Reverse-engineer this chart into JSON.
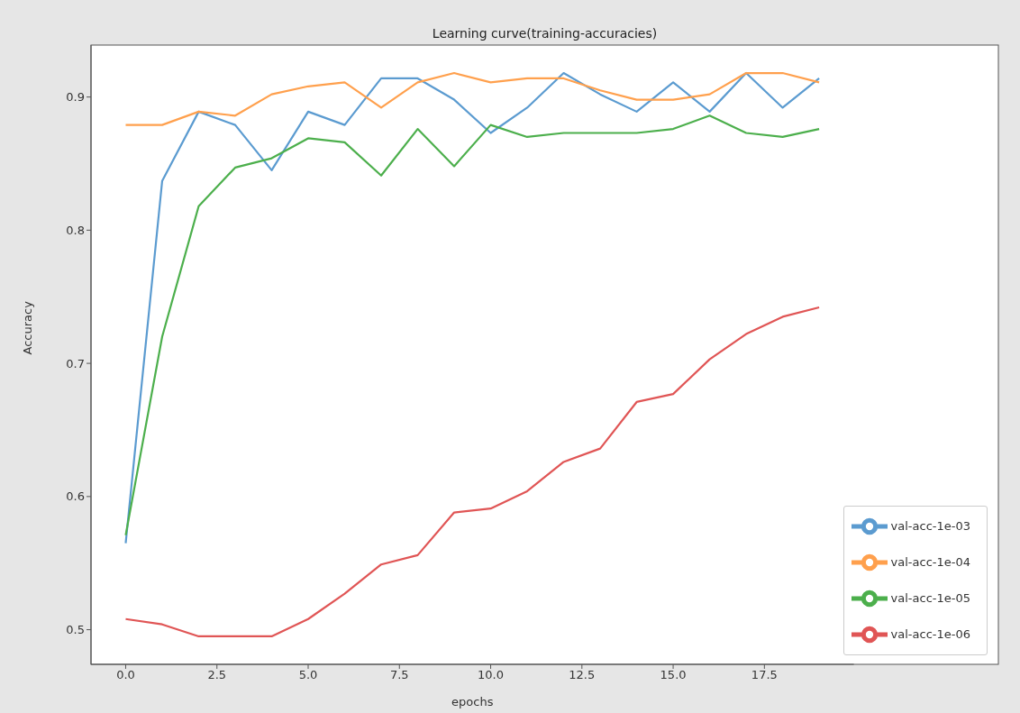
{
  "chart_data": {
    "type": "line",
    "title": "Learning curve(training-accuracies)",
    "xlabel": "epochs",
    "ylabel": "Accuracy",
    "x": [
      0,
      1,
      2,
      3,
      4,
      5,
      6,
      7,
      8,
      9,
      10,
      11,
      12,
      13,
      14,
      15,
      16,
      17,
      18,
      19
    ],
    "series": [
      {
        "name": "val-acc-1e-03",
        "color": "#5b9bd0",
        "values": [
          0.565,
          0.837,
          0.889,
          0.879,
          0.845,
          0.889,
          0.879,
          0.914,
          0.914,
          0.898,
          0.873,
          0.892,
          0.918,
          0.902,
          0.889,
          0.911,
          0.889,
          0.918,
          0.892,
          0.914
        ]
      },
      {
        "name": "val-acc-1e-04",
        "color": "#ffa04d",
        "values": [
          0.879,
          0.879,
          0.889,
          0.886,
          0.902,
          0.908,
          0.911,
          0.892,
          0.911,
          0.918,
          0.911,
          0.914,
          0.914,
          0.905,
          0.898,
          0.898,
          0.902,
          0.918,
          0.918,
          0.911
        ]
      },
      {
        "name": "val-acc-1e-05",
        "color": "#4caf4c",
        "values": [
          0.571,
          0.72,
          0.818,
          0.847,
          0.854,
          0.869,
          0.866,
          0.841,
          0.876,
          0.848,
          0.879,
          0.87,
          0.873,
          0.873,
          0.873,
          0.876,
          0.886,
          0.873,
          0.87,
          0.876
        ]
      },
      {
        "name": "val-acc-1e-06",
        "color": "#e05555",
        "values": [
          0.508,
          0.504,
          0.495,
          0.495,
          0.495,
          0.508,
          0.527,
          0.549,
          0.556,
          0.588,
          0.591,
          0.604,
          0.626,
          0.636,
          0.671,
          0.677,
          0.703,
          0.722,
          0.735,
          0.742
        ]
      }
    ],
    "xlim": [
      -0.95,
      19.95
    ],
    "ylim": [
      0.474,
      0.939
    ],
    "xticks": [
      {
        "value": 0,
        "label": "0.0"
      },
      2.5,
      {
        "value": 5,
        "label": "5.0"
      },
      7.5,
      {
        "value": 10,
        "label": "10.0"
      },
      12.5,
      {
        "value": 15,
        "label": "15.0"
      },
      17.5
    ],
    "yticks": [
      0.5,
      0.6,
      0.7,
      0.8,
      0.9
    ],
    "grid": false,
    "legend": "bottom right",
    "marker": "none",
    "line_style": "solid"
  }
}
